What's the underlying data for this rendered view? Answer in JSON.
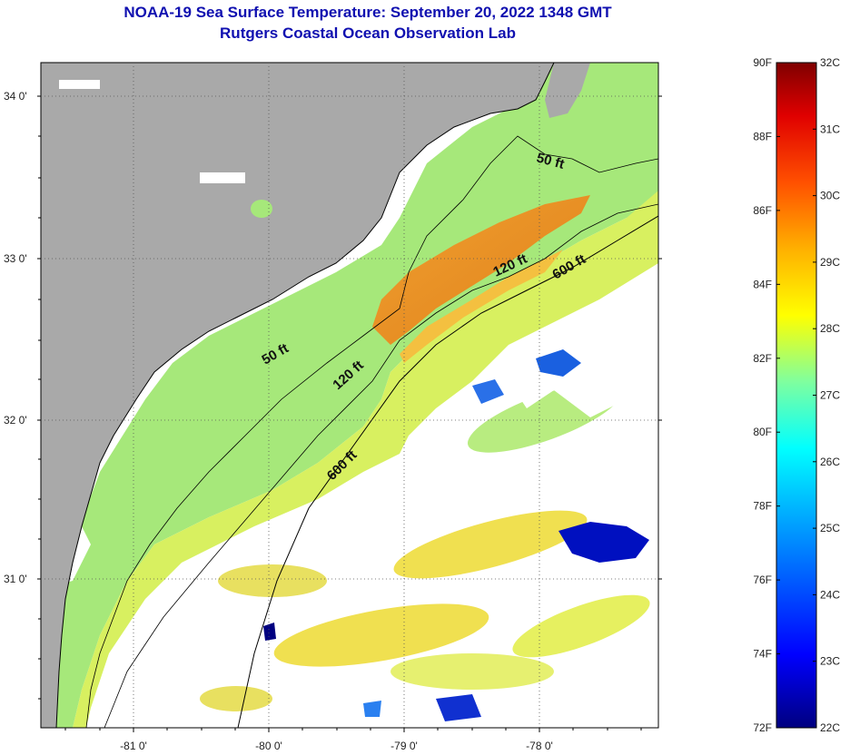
{
  "header": {
    "title": "NOAA-19 Sea Surface Temperature:  September 20, 2022 1348 GMT",
    "subtitle": "Rutgers Coastal Ocean Observation Lab"
  },
  "axes": {
    "lat_labels": [
      "34 0'",
      "33 0'",
      "32 0'",
      "31 0'"
    ],
    "lon_labels": [
      "-81 0'",
      "-80 0'",
      "-79 0'",
      "-78 0'"
    ]
  },
  "contours": {
    "shelf_50": "50 ft",
    "shelf_50_north": "50 ft",
    "mid_120": "120 ft",
    "mid_120_north": "120 ft",
    "break_600": "600 ft",
    "break_600_north": "600 ft"
  },
  "colorbar": {
    "fahrenheit": [
      "90F",
      "88F",
      "86F",
      "84F",
      "82F",
      "80F",
      "78F",
      "76F",
      "74F",
      "72F"
    ],
    "celsius": [
      "32C",
      "31C",
      "30C",
      "29C",
      "28C",
      "27C",
      "26C",
      "25C",
      "24C",
      "23C",
      "22C"
    ]
  },
  "colors": {
    "land": "#a9a9a9",
    "cloud": "#ffffff",
    "title": "#1010b0",
    "colorbar_stops": [
      "#00007f",
      "#0000ff",
      "#007fff",
      "#00ffff",
      "#7fff7f",
      "#ffff00",
      "#ff7f00",
      "#ff0000",
      "#7f0000"
    ]
  }
}
